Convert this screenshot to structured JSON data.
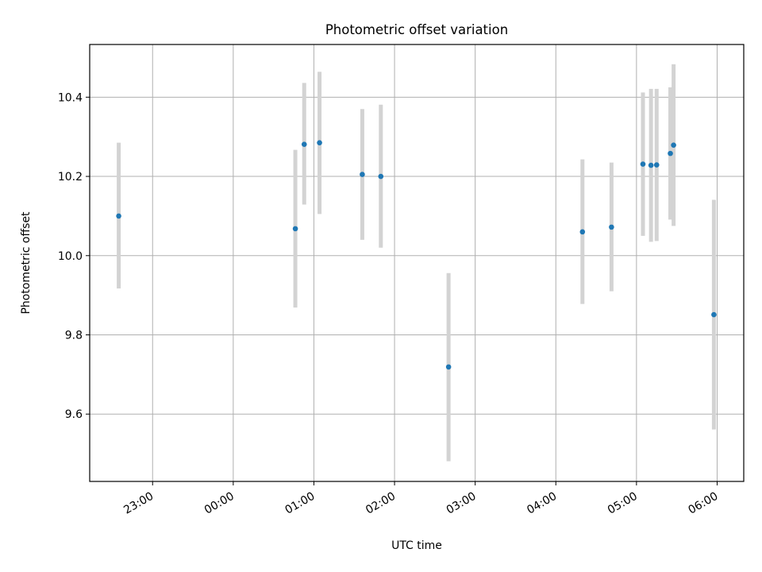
{
  "chart_data": {
    "type": "scatter",
    "title": "Photometric offset variation",
    "xlabel": "UTC time",
    "ylabel": "Photometric offset",
    "x_unit": "hours UTC since 00:00 (negative = previous day)",
    "xlim": [
      -1.78,
      6.33
    ],
    "ylim": [
      9.43,
      10.533
    ],
    "x_ticks": [
      {
        "value": -1,
        "label": "23:00"
      },
      {
        "value": 0,
        "label": "00:00"
      },
      {
        "value": 1,
        "label": "01:00"
      },
      {
        "value": 2,
        "label": "02:00"
      },
      {
        "value": 3,
        "label": "03:00"
      },
      {
        "value": 4,
        "label": "04:00"
      },
      {
        "value": 5,
        "label": "05:00"
      },
      {
        "value": 6,
        "label": "06:00"
      }
    ],
    "y_ticks": [
      {
        "value": 9.6,
        "label": "9.6"
      },
      {
        "value": 9.8,
        "label": "9.8"
      },
      {
        "value": 10.0,
        "label": "10.0"
      },
      {
        "value": 10.2,
        "label": "10.2"
      },
      {
        "value": 10.4,
        "label": "10.4"
      }
    ],
    "grid": true,
    "colors": {
      "point": "#1f77b4",
      "errorbar": "#d3d3d3",
      "grid": "#b0b0b0"
    },
    "points": [
      {
        "x": -1.42,
        "y": 10.1,
        "yerr_low": 9.917,
        "yerr_high": 10.285
      },
      {
        "x": 0.77,
        "y": 10.068,
        "yerr_low": 9.869,
        "yerr_high": 10.267
      },
      {
        "x": 0.88,
        "y": 10.281,
        "yerr_low": 10.129,
        "yerr_high": 10.436
      },
      {
        "x": 1.07,
        "y": 10.285,
        "yerr_low": 10.105,
        "yerr_high": 10.464
      },
      {
        "x": 1.6,
        "y": 10.205,
        "yerr_low": 10.04,
        "yerr_high": 10.37
      },
      {
        "x": 1.83,
        "y": 10.2,
        "yerr_low": 10.02,
        "yerr_high": 10.381
      },
      {
        "x": 2.67,
        "y": 9.719,
        "yerr_low": 9.481,
        "yerr_high": 9.956
      },
      {
        "x": 4.33,
        "y": 10.06,
        "yerr_low": 9.878,
        "yerr_high": 10.243
      },
      {
        "x": 4.69,
        "y": 10.072,
        "yerr_low": 9.91,
        "yerr_high": 10.235
      },
      {
        "x": 5.08,
        "y": 10.231,
        "yerr_low": 10.05,
        "yerr_high": 10.412
      },
      {
        "x": 5.18,
        "y": 10.228,
        "yerr_low": 10.035,
        "yerr_high": 10.421
      },
      {
        "x": 5.25,
        "y": 10.229,
        "yerr_low": 10.037,
        "yerr_high": 10.421
      },
      {
        "x": 5.42,
        "y": 10.258,
        "yerr_low": 10.091,
        "yerr_high": 10.425
      },
      {
        "x": 5.46,
        "y": 10.279,
        "yerr_low": 10.075,
        "yerr_high": 10.483
      },
      {
        "x": 5.96,
        "y": 9.851,
        "yerr_low": 9.561,
        "yerr_high": 10.141
      }
    ]
  }
}
